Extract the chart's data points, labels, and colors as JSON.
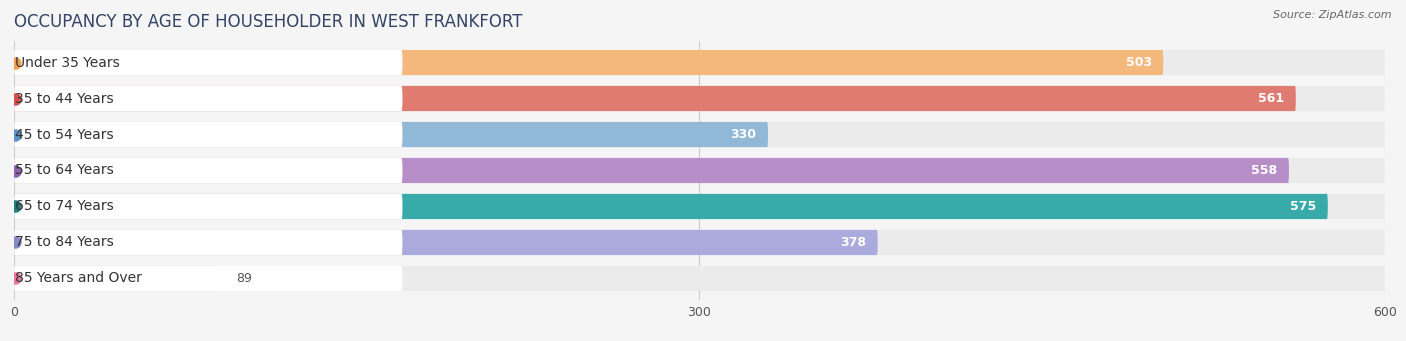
{
  "title": "OCCUPANCY BY AGE OF HOUSEHOLDER IN WEST FRANKFORT",
  "source": "Source: ZipAtlas.com",
  "categories": [
    "Under 35 Years",
    "35 to 44 Years",
    "45 to 54 Years",
    "55 to 64 Years",
    "65 to 74 Years",
    "75 to 84 Years",
    "85 Years and Over"
  ],
  "values": [
    503,
    561,
    330,
    558,
    575,
    378,
    89
  ],
  "bar_colors": [
    "#F5B87C",
    "#E07B72",
    "#92B8D8",
    "#B88EC8",
    "#38AAAA",
    "#AAAADD",
    "#F5A8C0"
  ],
  "dot_colors": [
    "#F0A050",
    "#D05050",
    "#6090C8",
    "#9060B0",
    "#208080",
    "#8888CC",
    "#E87898"
  ],
  "xlim": [
    0,
    600
  ],
  "xticks": [
    0,
    300,
    600
  ],
  "bg_color": "#f5f5f5",
  "bar_bg_color": "#ebebeb",
  "title_fontsize": 12,
  "label_fontsize": 10,
  "value_fontsize": 9
}
